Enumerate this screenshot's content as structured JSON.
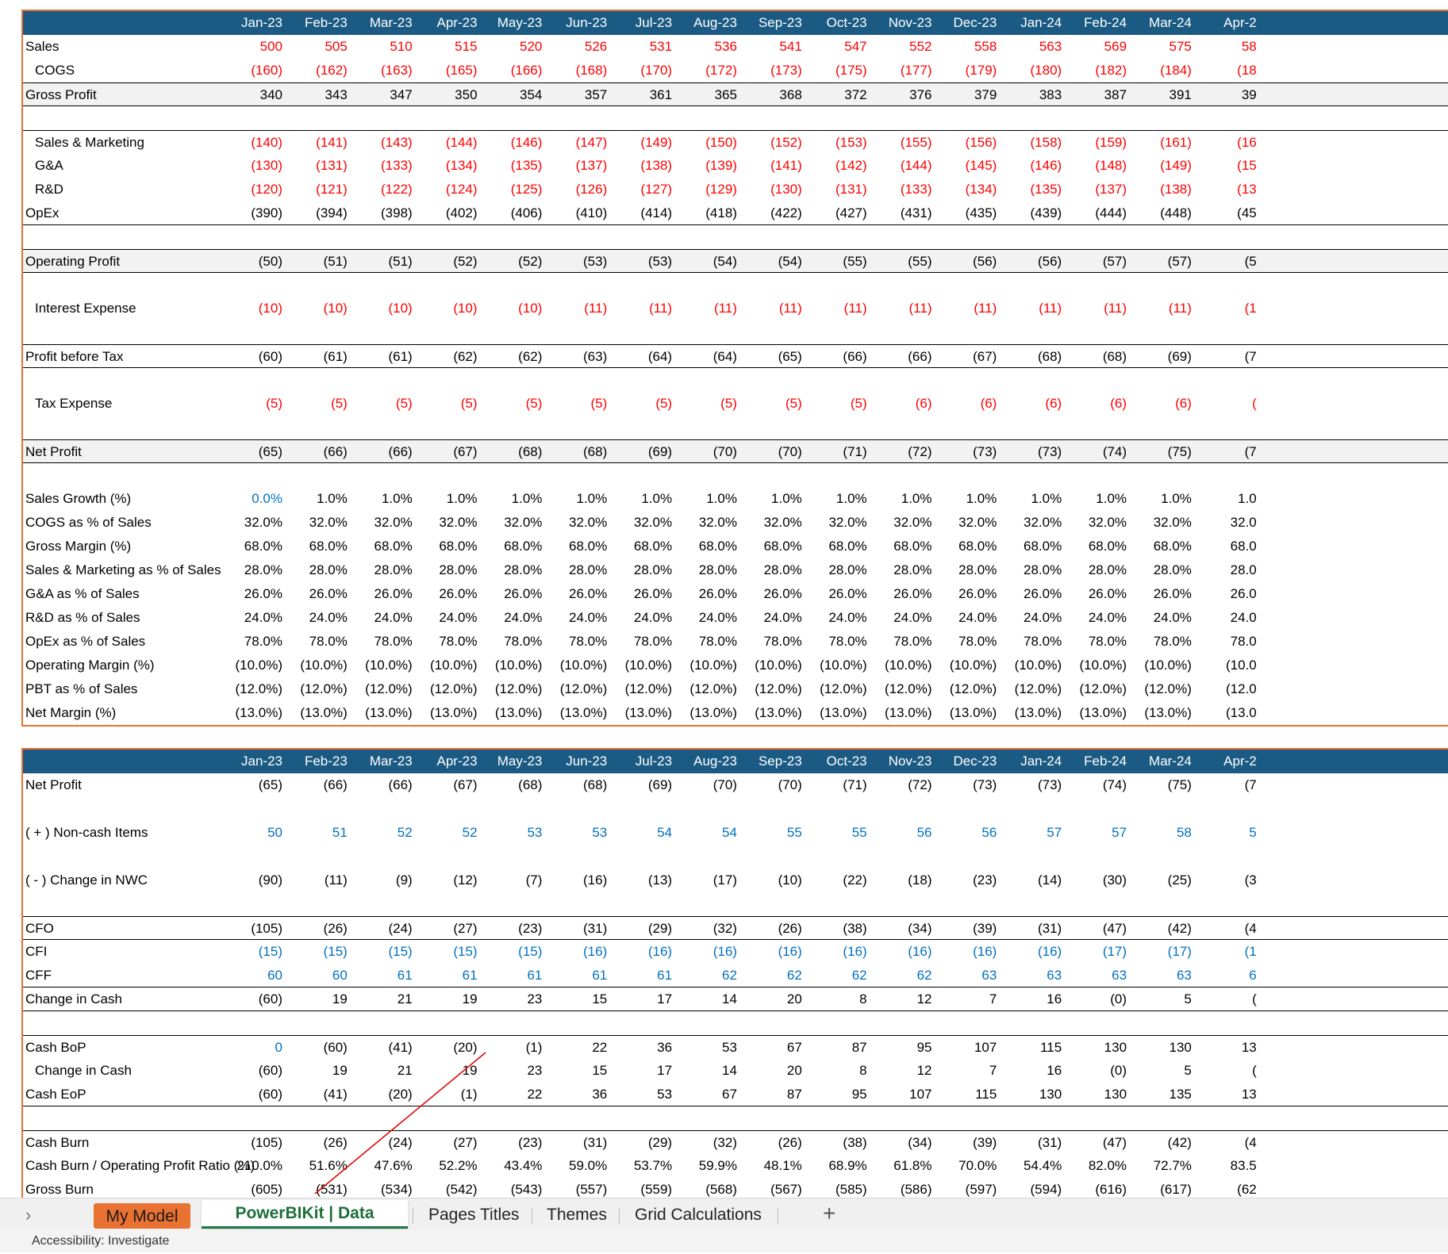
{
  "months": [
    "Jan-23",
    "Feb-23",
    "Mar-23",
    "Apr-23",
    "May-23",
    "Jun-23",
    "Jul-23",
    "Aug-23",
    "Sep-23",
    "Oct-23",
    "Nov-23",
    "Dec-23",
    "Jan-24",
    "Feb-24",
    "Mar-24",
    "Apr-2"
  ],
  "income_statement": {
    "sales": {
      "label": "Sales",
      "values": [
        "500",
        "505",
        "510",
        "515",
        "520",
        "526",
        "531",
        "536",
        "541",
        "547",
        "552",
        "558",
        "563",
        "569",
        "575",
        "58"
      ]
    },
    "cogs": {
      "label": "COGS",
      "values": [
        "(160)",
        "(162)",
        "(163)",
        "(165)",
        "(166)",
        "(168)",
        "(170)",
        "(172)",
        "(173)",
        "(175)",
        "(177)",
        "(179)",
        "(180)",
        "(182)",
        "(184)",
        "(18"
      ]
    },
    "gross_profit": {
      "label": "Gross Profit",
      "values": [
        "340",
        "343",
        "347",
        "350",
        "354",
        "357",
        "361",
        "365",
        "368",
        "372",
        "376",
        "379",
        "383",
        "387",
        "391",
        "39"
      ]
    },
    "sales_marketing": {
      "label": "Sales & Marketing",
      "values": [
        "(140)",
        "(141)",
        "(143)",
        "(144)",
        "(146)",
        "(147)",
        "(149)",
        "(150)",
        "(152)",
        "(153)",
        "(155)",
        "(156)",
        "(158)",
        "(159)",
        "(161)",
        "(16"
      ]
    },
    "ga": {
      "label": "G&A",
      "values": [
        "(130)",
        "(131)",
        "(133)",
        "(134)",
        "(135)",
        "(137)",
        "(138)",
        "(139)",
        "(141)",
        "(142)",
        "(144)",
        "(145)",
        "(146)",
        "(148)",
        "(149)",
        "(15"
      ]
    },
    "rd": {
      "label": "R&D",
      "values": [
        "(120)",
        "(121)",
        "(122)",
        "(124)",
        "(125)",
        "(126)",
        "(127)",
        "(129)",
        "(130)",
        "(131)",
        "(133)",
        "(134)",
        "(135)",
        "(137)",
        "(138)",
        "(13"
      ]
    },
    "opex": {
      "label": "OpEx",
      "values": [
        "(390)",
        "(394)",
        "(398)",
        "(402)",
        "(406)",
        "(410)",
        "(414)",
        "(418)",
        "(422)",
        "(427)",
        "(431)",
        "(435)",
        "(439)",
        "(444)",
        "(448)",
        "(45"
      ]
    },
    "operating_profit": {
      "label": "Operating Profit",
      "values": [
        "(50)",
        "(51)",
        "(51)",
        "(52)",
        "(52)",
        "(53)",
        "(53)",
        "(54)",
        "(54)",
        "(55)",
        "(55)",
        "(56)",
        "(56)",
        "(57)",
        "(57)",
        "(5"
      ]
    },
    "interest_expense": {
      "label": "Interest Expense",
      "values": [
        "(10)",
        "(10)",
        "(10)",
        "(10)",
        "(10)",
        "(11)",
        "(11)",
        "(11)",
        "(11)",
        "(11)",
        "(11)",
        "(11)",
        "(11)",
        "(11)",
        "(11)",
        "(1"
      ]
    },
    "pbt": {
      "label": "Profit before Tax",
      "values": [
        "(60)",
        "(61)",
        "(61)",
        "(62)",
        "(62)",
        "(63)",
        "(64)",
        "(64)",
        "(65)",
        "(66)",
        "(66)",
        "(67)",
        "(68)",
        "(68)",
        "(69)",
        "(7"
      ]
    },
    "tax_expense": {
      "label": "Tax Expense",
      "values": [
        "(5)",
        "(5)",
        "(5)",
        "(5)",
        "(5)",
        "(5)",
        "(5)",
        "(5)",
        "(5)",
        "(5)",
        "(6)",
        "(6)",
        "(6)",
        "(6)",
        "(6)",
        "("
      ]
    },
    "net_profit": {
      "label": "Net Profit",
      "values": [
        "(65)",
        "(66)",
        "(66)",
        "(67)",
        "(68)",
        "(68)",
        "(69)",
        "(70)",
        "(70)",
        "(71)",
        "(72)",
        "(73)",
        "(73)",
        "(74)",
        "(75)",
        "(7"
      ]
    },
    "sales_growth": {
      "label": "Sales Growth (%)",
      "values": [
        "0.0%",
        "1.0%",
        "1.0%",
        "1.0%",
        "1.0%",
        "1.0%",
        "1.0%",
        "1.0%",
        "1.0%",
        "1.0%",
        "1.0%",
        "1.0%",
        "1.0%",
        "1.0%",
        "1.0%",
        "1.0"
      ]
    },
    "cogs_pct": {
      "label": "COGS as % of Sales",
      "values": [
        "32.0%",
        "32.0%",
        "32.0%",
        "32.0%",
        "32.0%",
        "32.0%",
        "32.0%",
        "32.0%",
        "32.0%",
        "32.0%",
        "32.0%",
        "32.0%",
        "32.0%",
        "32.0%",
        "32.0%",
        "32.0"
      ]
    },
    "gross_margin": {
      "label": "Gross Margin (%)",
      "values": [
        "68.0%",
        "68.0%",
        "68.0%",
        "68.0%",
        "68.0%",
        "68.0%",
        "68.0%",
        "68.0%",
        "68.0%",
        "68.0%",
        "68.0%",
        "68.0%",
        "68.0%",
        "68.0%",
        "68.0%",
        "68.0"
      ]
    },
    "sm_pct": {
      "label": "Sales & Marketing as % of Sales",
      "values": [
        "28.0%",
        "28.0%",
        "28.0%",
        "28.0%",
        "28.0%",
        "28.0%",
        "28.0%",
        "28.0%",
        "28.0%",
        "28.0%",
        "28.0%",
        "28.0%",
        "28.0%",
        "28.0%",
        "28.0%",
        "28.0"
      ]
    },
    "ga_pct": {
      "label": "G&A as % of Sales",
      "values": [
        "26.0%",
        "26.0%",
        "26.0%",
        "26.0%",
        "26.0%",
        "26.0%",
        "26.0%",
        "26.0%",
        "26.0%",
        "26.0%",
        "26.0%",
        "26.0%",
        "26.0%",
        "26.0%",
        "26.0%",
        "26.0"
      ]
    },
    "rd_pct": {
      "label": "R&D as % of Sales",
      "values": [
        "24.0%",
        "24.0%",
        "24.0%",
        "24.0%",
        "24.0%",
        "24.0%",
        "24.0%",
        "24.0%",
        "24.0%",
        "24.0%",
        "24.0%",
        "24.0%",
        "24.0%",
        "24.0%",
        "24.0%",
        "24.0"
      ]
    },
    "opex_pct": {
      "label": "OpEx as % of Sales",
      "values": [
        "78.0%",
        "78.0%",
        "78.0%",
        "78.0%",
        "78.0%",
        "78.0%",
        "78.0%",
        "78.0%",
        "78.0%",
        "78.0%",
        "78.0%",
        "78.0%",
        "78.0%",
        "78.0%",
        "78.0%",
        "78.0"
      ]
    },
    "operating_margin": {
      "label": "Operating Margin (%)",
      "values": [
        "(10.0%)",
        "(10.0%)",
        "(10.0%)",
        "(10.0%)",
        "(10.0%)",
        "(10.0%)",
        "(10.0%)",
        "(10.0%)",
        "(10.0%)",
        "(10.0%)",
        "(10.0%)",
        "(10.0%)",
        "(10.0%)",
        "(10.0%)",
        "(10.0%)",
        "(10.0"
      ]
    },
    "pbt_pct": {
      "label": "PBT as % of Sales",
      "values": [
        "(12.0%)",
        "(12.0%)",
        "(12.0%)",
        "(12.0%)",
        "(12.0%)",
        "(12.0%)",
        "(12.0%)",
        "(12.0%)",
        "(12.0%)",
        "(12.0%)",
        "(12.0%)",
        "(12.0%)",
        "(12.0%)",
        "(12.0%)",
        "(12.0%)",
        "(12.0"
      ]
    },
    "net_margin": {
      "label": "Net Margin (%)",
      "values": [
        "(13.0%)",
        "(13.0%)",
        "(13.0%)",
        "(13.0%)",
        "(13.0%)",
        "(13.0%)",
        "(13.0%)",
        "(13.0%)",
        "(13.0%)",
        "(13.0%)",
        "(13.0%)",
        "(13.0%)",
        "(13.0%)",
        "(13.0%)",
        "(13.0%)",
        "(13.0"
      ]
    }
  },
  "cash_flow": {
    "net_profit": {
      "label": "Net Profit",
      "values": [
        "(65)",
        "(66)",
        "(66)",
        "(67)",
        "(68)",
        "(68)",
        "(69)",
        "(70)",
        "(70)",
        "(71)",
        "(72)",
        "(73)",
        "(73)",
        "(74)",
        "(75)",
        "(7"
      ]
    },
    "noncash": {
      "label": "( + ) Non-cash Items",
      "values": [
        "50",
        "51",
        "52",
        "52",
        "53",
        "53",
        "54",
        "54",
        "55",
        "55",
        "56",
        "56",
        "57",
        "57",
        "58",
        "5"
      ]
    },
    "nwc": {
      "label": "( - ) Change in NWC",
      "values": [
        "(90)",
        "(11)",
        "(9)",
        "(12)",
        "(7)",
        "(16)",
        "(13)",
        "(17)",
        "(10)",
        "(22)",
        "(18)",
        "(23)",
        "(14)",
        "(30)",
        "(25)",
        "(3"
      ]
    },
    "cfo": {
      "label": "CFO",
      "values": [
        "(105)",
        "(26)",
        "(24)",
        "(27)",
        "(23)",
        "(31)",
        "(29)",
        "(32)",
        "(26)",
        "(38)",
        "(34)",
        "(39)",
        "(31)",
        "(47)",
        "(42)",
        "(4"
      ]
    },
    "cfi": {
      "label": "CFI",
      "values": [
        "(15)",
        "(15)",
        "(15)",
        "(15)",
        "(15)",
        "(16)",
        "(16)",
        "(16)",
        "(16)",
        "(16)",
        "(16)",
        "(16)",
        "(16)",
        "(17)",
        "(17)",
        "(1"
      ]
    },
    "cff": {
      "label": "CFF",
      "values": [
        "60",
        "60",
        "61",
        "61",
        "61",
        "61",
        "61",
        "62",
        "62",
        "62",
        "62",
        "63",
        "63",
        "63",
        "63",
        "6"
      ]
    },
    "change_cash": {
      "label": "Change in Cash",
      "values": [
        "(60)",
        "19",
        "21",
        "19",
        "23",
        "15",
        "17",
        "14",
        "20",
        "8",
        "12",
        "7",
        "16",
        "(0)",
        "5",
        "("
      ]
    },
    "cash_bop": {
      "label": "Cash BoP",
      "values": [
        "0",
        "(60)",
        "(41)",
        "(20)",
        "(1)",
        "22",
        "36",
        "53",
        "67",
        "87",
        "95",
        "107",
        "115",
        "130",
        "130",
        "13"
      ]
    },
    "change_cash_2": {
      "label": "Change in Cash",
      "values": [
        "(60)",
        "19",
        "21",
        "19",
        "23",
        "15",
        "17",
        "14",
        "20",
        "8",
        "12",
        "7",
        "16",
        "(0)",
        "5",
        "("
      ]
    },
    "cash_eop": {
      "label": "Cash EoP",
      "values": [
        "(60)",
        "(41)",
        "(20)",
        "(1)",
        "22",
        "36",
        "53",
        "67",
        "87",
        "95",
        "107",
        "115",
        "130",
        "130",
        "135",
        "13"
      ]
    },
    "cash_burn": {
      "label": "Cash Burn",
      "values": [
        "(105)",
        "(26)",
        "(24)",
        "(27)",
        "(23)",
        "(31)",
        "(29)",
        "(32)",
        "(26)",
        "(38)",
        "(34)",
        "(39)",
        "(31)",
        "(47)",
        "(42)",
        "(4"
      ]
    },
    "burn_ratio": {
      "label": "Cash Burn / Operating Profit Ratio (%)",
      "values": [
        "210.0%",
        "51.6%",
        "47.6%",
        "52.2%",
        "43.4%",
        "59.0%",
        "53.7%",
        "59.9%",
        "48.1%",
        "68.9%",
        "61.8%",
        "70.0%",
        "54.4%",
        "82.0%",
        "72.7%",
        "83.5"
      ]
    },
    "gross_burn": {
      "label": "Gross Burn",
      "values": [
        "(605)",
        "(531)",
        "(534)",
        "(542)",
        "(543)",
        "(557)",
        "(559)",
        "(568)",
        "(567)",
        "(585)",
        "(586)",
        "(597)",
        "(594)",
        "(616)",
        "(617)",
        "(62"
      ]
    }
  },
  "tabs": {
    "my_model": "My Model",
    "data_source": "PowerBIKit | Data Source",
    "pages_titles": "Pages Titles",
    "themes": "Themes",
    "grid_calculations": "Grid Calculations",
    "add": "+",
    "nav": "›"
  },
  "status": {
    "text": "Accessibility: Investigate"
  },
  "colors": {
    "header_bg": "#1b5b83",
    "accent_orange": "#e97132",
    "negative_input": "#ff0000",
    "link_blue": "#0070c0"
  }
}
